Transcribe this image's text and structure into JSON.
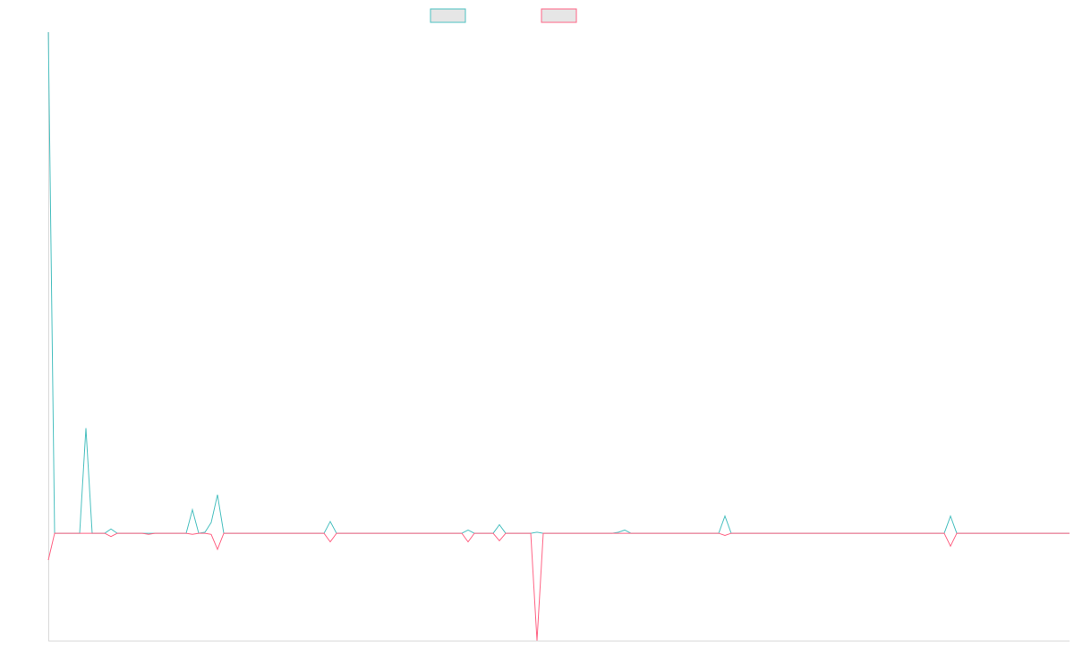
{
  "chart_data": {
    "type": "line",
    "title": "",
    "xlabel": "",
    "ylabel": "",
    "grid": false,
    "legend_position": "top-center",
    "xlim": [
      0,
      163
    ],
    "ylim": [
      -1.0,
      4.67
    ],
    "colors": {
      "series_a": "#4bc0c0",
      "series_b": "#ff6384",
      "axis": "#d9d9d9",
      "legend_fill": "#e6e6e6"
    },
    "series": [
      {
        "key": "teal",
        "name": "",
        "color": "#4bc0c0",
        "points": [
          [
            0,
            4.67
          ],
          [
            1,
            0
          ],
          [
            5,
            0
          ],
          [
            6,
            0.98
          ],
          [
            7,
            0
          ],
          [
            8,
            0
          ],
          [
            9,
            0
          ],
          [
            10,
            0.04
          ],
          [
            11,
            0
          ],
          [
            16,
            0
          ],
          [
            22,
            0
          ],
          [
            23,
            0.22
          ],
          [
            24,
            0
          ],
          [
            25,
            0.01
          ],
          [
            26,
            0.1
          ],
          [
            27,
            0.36
          ],
          [
            28,
            0
          ],
          [
            44,
            0
          ],
          [
            45,
            0.11
          ],
          [
            46,
            0
          ],
          [
            60,
            0
          ],
          [
            66,
            0
          ],
          [
            67,
            0.03
          ],
          [
            68,
            0
          ],
          [
            71,
            0
          ],
          [
            72,
            0.08
          ],
          [
            73,
            0
          ],
          [
            77,
            0
          ],
          [
            78,
            0.01
          ],
          [
            79,
            0
          ],
          [
            90,
            0
          ],
          [
            91,
            0.01
          ],
          [
            92,
            0.03
          ],
          [
            93,
            0
          ],
          [
            107,
            0
          ],
          [
            108,
            0.16
          ],
          [
            109,
            0
          ],
          [
            143,
            0
          ],
          [
            144,
            0.16
          ],
          [
            145,
            0
          ],
          [
            163,
            0
          ]
        ]
      },
      {
        "key": "pink",
        "name": "",
        "color": "#ff6384",
        "points": [
          [
            0,
            -0.25
          ],
          [
            1,
            0
          ],
          [
            5,
            0
          ],
          [
            6,
            0
          ],
          [
            7,
            0
          ],
          [
            8,
            0
          ],
          [
            9,
            0
          ],
          [
            10,
            -0.03
          ],
          [
            11,
            0
          ],
          [
            15,
            0
          ],
          [
            16,
            -0.01
          ],
          [
            17,
            0
          ],
          [
            22,
            0
          ],
          [
            23,
            -0.01
          ],
          [
            24,
            0
          ],
          [
            25,
            0
          ],
          [
            26,
            -0.01
          ],
          [
            27,
            -0.15
          ],
          [
            28,
            0
          ],
          [
            44,
            0
          ],
          [
            45,
            -0.08
          ],
          [
            46,
            0
          ],
          [
            66,
            0
          ],
          [
            67,
            -0.08
          ],
          [
            68,
            0
          ],
          [
            71,
            0
          ],
          [
            72,
            -0.07
          ],
          [
            73,
            0
          ],
          [
            77,
            0
          ],
          [
            78,
            -1.0
          ],
          [
            79,
            0
          ],
          [
            107,
            0
          ],
          [
            108,
            -0.02
          ],
          [
            109,
            0
          ],
          [
            143,
            0
          ],
          [
            144,
            -0.12
          ],
          [
            145,
            0
          ],
          [
            163,
            0
          ]
        ]
      }
    ]
  }
}
